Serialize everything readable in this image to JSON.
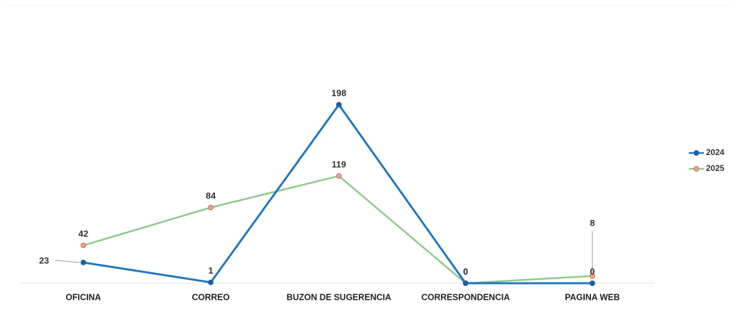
{
  "chart_data": {
    "type": "line",
    "categories": [
      "OFICINA",
      "CORREO",
      "BUZON DE SUGERENCIA",
      "CORRESPONDENCIA",
      "PAGINA WEB"
    ],
    "series": [
      {
        "name": "2024",
        "color": "#2176c0",
        "values": [
          23,
          1,
          198,
          0,
          0
        ]
      },
      {
        "name": "2025",
        "color": "#8dc98a",
        "values": [
          42,
          84,
          119,
          0,
          8
        ]
      }
    ]
  }
}
